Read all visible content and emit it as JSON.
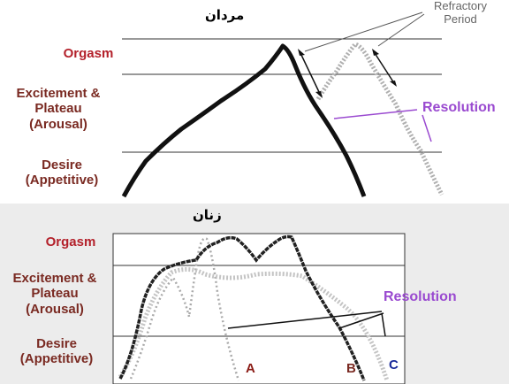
{
  "top": {
    "title": "مردان",
    "labels": {
      "orgasm": "Orgasm",
      "excitement": [
        "Excitement &",
        "Plateau",
        "(Arousal)"
      ],
      "desire": [
        "Desire",
        "(Appetitive)"
      ]
    },
    "refractory": [
      "Refractory",
      "Period"
    ],
    "resolution": "Resolution"
  },
  "bottom": {
    "title": "زنان",
    "labels": {
      "orgasm": "Orgasm",
      "excitement": [
        "Excitement &",
        "Plateau",
        "(Arousal)"
      ],
      "desire": [
        "Desire",
        "(Appetitive)"
      ]
    },
    "resolution": "Resolution",
    "curves": [
      "A",
      "B",
      "C"
    ]
  },
  "colors": {
    "red": "#b3202a",
    "purple": "#9a4ad0",
    "curve_a": "#8a1a14",
    "curve_b": "#7a2a22",
    "curve_c": "#1a2a9a"
  }
}
